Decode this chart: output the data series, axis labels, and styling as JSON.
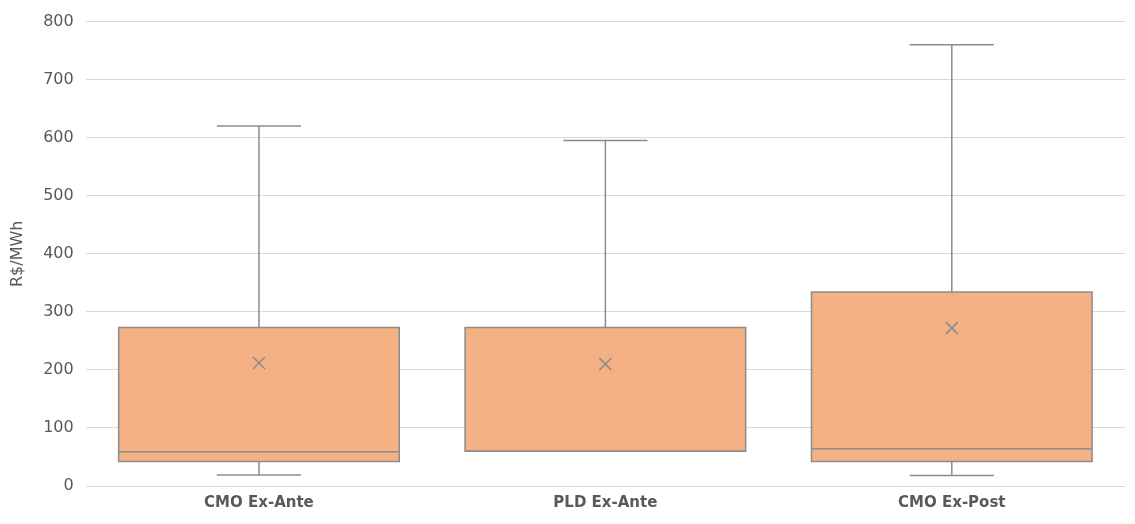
{
  "chart_data": {
    "type": "box",
    "ylabel": "R$/MWh",
    "categories": [
      "CMO Ex-Ante",
      "PLD Ex-Ante",
      "CMO Ex-Post"
    ],
    "color": "#f4b183",
    "boxes": [
      {
        "low": 19,
        "q1": 42,
        "median": 59,
        "q3": 273,
        "high": 620,
        "mean": 212
      },
      {
        "low": 60,
        "q1": 60,
        "median": 60,
        "q3": 273,
        "high": 595,
        "mean": 210
      },
      {
        "low": 18,
        "q1": 42,
        "median": 64,
        "q3": 334,
        "high": 760,
        "mean": 272
      }
    ],
    "ylim": [
      0,
      800
    ],
    "yticks": [
      0,
      100,
      200,
      300,
      400,
      500,
      600,
      700,
      800
    ],
    "grid": "y"
  }
}
